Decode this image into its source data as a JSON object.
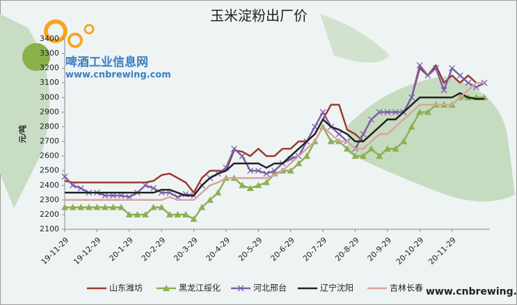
{
  "chart_data": {
    "type": "line",
    "title": "玉米淀粉出厂价",
    "y_label": "元/吨",
    "watermark": {
      "site_name": "啤酒工业信息网",
      "url": "www.cnbrewing.com",
      "corner_url": "www.cnbrewing.com"
    },
    "categories": [
      "19-11-29",
      null,
      null,
      null,
      "19-12-29",
      null,
      null,
      null,
      "20-1-29",
      null,
      null,
      null,
      "20-2-29",
      null,
      null,
      null,
      "20-3-29",
      null,
      null,
      null,
      "20-4-29",
      null,
      null,
      null,
      "20-5-29",
      null,
      null,
      null,
      "20-6-29",
      null,
      null,
      null,
      "20-7-29",
      null,
      null,
      null,
      "20-8-29",
      null,
      null,
      null,
      "20-9-29",
      null,
      null,
      null,
      "20-10-29",
      null,
      null,
      null,
      "20-11-29",
      null,
      null,
      null,
      null
    ],
    "series": [
      {
        "name": "山东潍坊",
        "color": "#9b3a2e",
        "marker": "none",
        "values": [
          2430,
          2420,
          2420,
          2420,
          2420,
          2420,
          2420,
          2420,
          2420,
          2420,
          2420,
          2430,
          2470,
          2480,
          2450,
          2420,
          2350,
          2450,
          2500,
          2500,
          2500,
          2640,
          2630,
          2600,
          2650,
          2600,
          2600,
          2650,
          2650,
          2700,
          2700,
          2750,
          2850,
          2950,
          2950,
          2780,
          2750,
          2700,
          2750,
          2800,
          2850,
          2850,
          2900,
          3000,
          3200,
          3150,
          3220,
          3100,
          3150,
          3100,
          3150,
          3100,
          3100
        ]
      },
      {
        "name": "黑龙江绥化",
        "color": "#8db050",
        "marker": "triangle",
        "values": [
          2250,
          2250,
          2250,
          2250,
          2250,
          2250,
          2250,
          2250,
          2200,
          2200,
          2200,
          2250,
          2250,
          2200,
          2200,
          2200,
          2170,
          2250,
          2300,
          2350,
          2450,
          2450,
          2400,
          2380,
          2400,
          2420,
          2480,
          2500,
          2500,
          2550,
          2600,
          2700,
          2800,
          2700,
          2700,
          2650,
          2600,
          2600,
          2650,
          2600,
          2650,
          2650,
          2700,
          2800,
          2900,
          2900,
          2950,
          2950,
          2950,
          3000,
          3000,
          3000,
          3000
        ]
      },
      {
        "name": "河北邢台",
        "color": "#7b5ea7",
        "marker": "x",
        "values": [
          2460,
          2400,
          2380,
          2350,
          2350,
          2330,
          2330,
          2330,
          2320,
          2350,
          2400,
          2380,
          2350,
          2350,
          2320,
          2340,
          2330,
          2400,
          2450,
          2480,
          2520,
          2650,
          2600,
          2500,
          2500,
          2480,
          2500,
          2550,
          2580,
          2600,
          2700,
          2800,
          2900,
          2800,
          2750,
          2700,
          2650,
          2750,
          2850,
          2900,
          2900,
          2900,
          2900,
          3000,
          3220,
          3150,
          3200,
          3050,
          3200,
          3150,
          3100,
          3070,
          3100
        ]
      },
      {
        "name": "辽宁沈阳",
        "color": "#222222",
        "marker": "none",
        "values": [
          2350,
          2350,
          2350,
          2350,
          2350,
          2350,
          2350,
          2350,
          2350,
          2350,
          2350,
          2350,
          2370,
          2370,
          2350,
          2330,
          2330,
          2400,
          2450,
          2480,
          2500,
          2550,
          2550,
          2550,
          2550,
          2520,
          2550,
          2550,
          2600,
          2650,
          2700,
          2750,
          2850,
          2800,
          2780,
          2750,
          2700,
          2700,
          2750,
          2800,
          2850,
          2850,
          2900,
          2950,
          3000,
          3000,
          3000,
          3000,
          3000,
          3030,
          3000,
          2990,
          2990
        ]
      },
      {
        "name": "吉林长春",
        "color": "#d9a3a0",
        "marker": "none",
        "values": [
          2300,
          2300,
          2300,
          2300,
          2300,
          2300,
          2300,
          2300,
          2300,
          2300,
          2300,
          2300,
          2300,
          2320,
          2300,
          2300,
          2300,
          2350,
          2400,
          2420,
          2450,
          2450,
          2450,
          2450,
          2450,
          2450,
          2470,
          2500,
          2550,
          2600,
          2650,
          2700,
          2800,
          2750,
          2700,
          2700,
          2650,
          2650,
          2700,
          2750,
          2750,
          2800,
          2850,
          2900,
          2950,
          2950,
          2950,
          2950,
          2950,
          3000,
          3050,
          3100,
          3100
        ]
      }
    ],
    "ylim": [
      2100,
      3400
    ],
    "yticks": [
      2100,
      2200,
      2300,
      2400,
      2500,
      2600,
      2700,
      2800,
      2900,
      3000,
      3100,
      3200,
      3300,
      3400
    ],
    "legend": "bottom"
  }
}
